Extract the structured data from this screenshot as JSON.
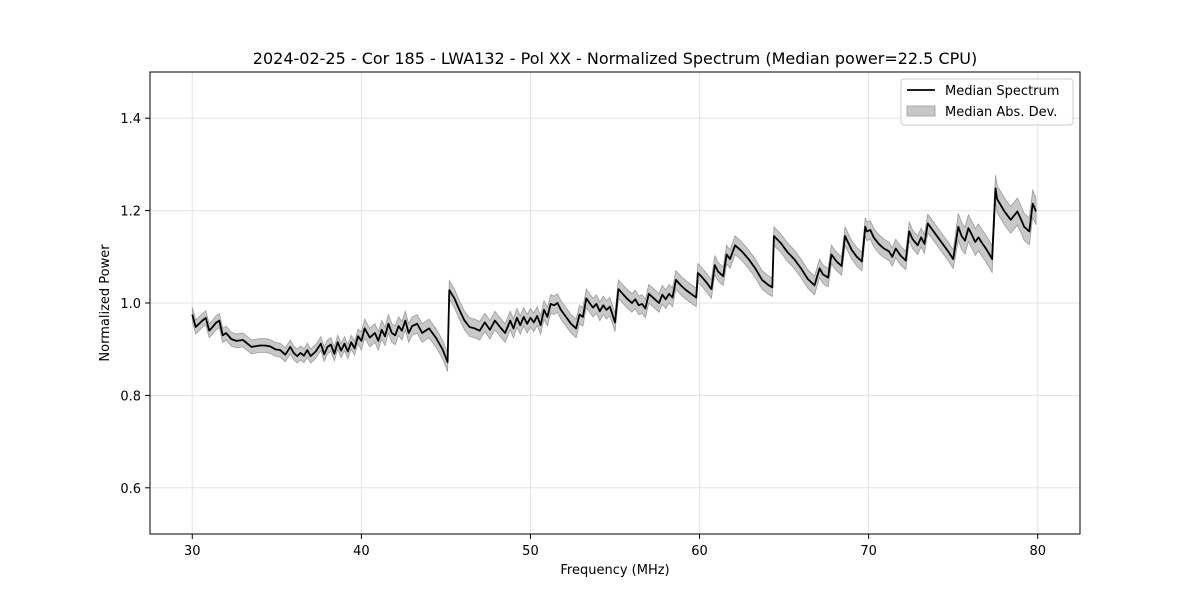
{
  "chart_data": {
    "type": "line",
    "title": "2024-02-25 - Cor 185 - LWA132 - Pol XX - Normalized Spectrum (Median power=22.5 CPU)",
    "xlabel": "Frequency (MHz)",
    "ylabel": "Normalized Power",
    "xlim": [
      27.5,
      82.5
    ],
    "ylim": [
      0.5,
      1.5
    ],
    "xticks": [
      30,
      40,
      50,
      60,
      70,
      80
    ],
    "yticks": [
      0.6,
      0.8,
      1.0,
      1.2,
      1.4
    ],
    "grid": true,
    "legend_position": "top-right",
    "colors": {
      "line": "#000000",
      "band": "#c8c8c8",
      "band_edge": "#9a9a9a",
      "grid": "#e3e3e3"
    },
    "series": [
      {
        "name": "Median Spectrum",
        "x": [
          30.0,
          30.2,
          30.4,
          30.6,
          30.8,
          31.0,
          31.2,
          31.4,
          31.6,
          31.8,
          32.0,
          32.3,
          32.6,
          33.0,
          33.5,
          34.0,
          34.3,
          34.6,
          34.9,
          35.2,
          35.5,
          35.8,
          36.0,
          36.2,
          36.4,
          36.6,
          36.8,
          37.0,
          37.3,
          37.6,
          37.8,
          38.0,
          38.2,
          38.4,
          38.6,
          38.8,
          39.0,
          39.2,
          39.4,
          39.6,
          39.8,
          40.0,
          40.2,
          40.5,
          40.8,
          41.0,
          41.2,
          41.4,
          41.6,
          41.8,
          42.0,
          42.2,
          42.4,
          42.6,
          42.8,
          43.0,
          43.3,
          43.6,
          44.0,
          44.4,
          44.8,
          45.1,
          45.2,
          45.5,
          45.8,
          46.1,
          46.4,
          46.7,
          47.0,
          47.3,
          47.6,
          47.9,
          48.2,
          48.5,
          48.8,
          49.0,
          49.2,
          49.4,
          49.6,
          49.8,
          50.0,
          50.2,
          50.4,
          50.6,
          50.8,
          51.0,
          51.2,
          51.4,
          51.6,
          51.8,
          52.1,
          52.4,
          52.7,
          52.9,
          53.1,
          53.3,
          53.5,
          53.7,
          53.9,
          54.1,
          54.3,
          54.5,
          54.7,
          55.0,
          55.2,
          55.4,
          55.7,
          56.0,
          56.2,
          56.4,
          56.6,
          56.8,
          57.0,
          57.3,
          57.6,
          57.8,
          58.0,
          58.2,
          58.4,
          58.6,
          58.9,
          59.2,
          59.5,
          59.8,
          59.9,
          60.1,
          60.4,
          60.7,
          60.9,
          61.1,
          61.4,
          61.6,
          61.8,
          62.1,
          62.5,
          62.9,
          63.3,
          63.7,
          64.1,
          64.3,
          64.4,
          64.8,
          65.2,
          65.6,
          66.0,
          66.4,
          66.8,
          67.1,
          67.3,
          67.6,
          67.8,
          68.1,
          68.4,
          68.6,
          68.8,
          69.0,
          69.3,
          69.6,
          69.8,
          69.9,
          70.1,
          70.3,
          70.6,
          70.9,
          71.2,
          71.4,
          71.6,
          71.9,
          72.2,
          72.4,
          72.6,
          72.9,
          73.1,
          73.3,
          73.5,
          73.9,
          74.3,
          74.7,
          75.0,
          75.3,
          75.5,
          75.7,
          75.9,
          76.1,
          76.3,
          76.5,
          76.7,
          76.9,
          77.1,
          77.3,
          77.5,
          77.6,
          78.0,
          78.4,
          78.8,
          79.0,
          79.2,
          79.5,
          79.7,
          79.9
        ],
        "y": [
          0.975,
          0.948,
          0.955,
          0.962,
          0.968,
          0.94,
          0.948,
          0.957,
          0.962,
          0.93,
          0.935,
          0.922,
          0.918,
          0.92,
          0.905,
          0.908,
          0.908,
          0.906,
          0.9,
          0.898,
          0.888,
          0.905,
          0.892,
          0.885,
          0.892,
          0.886,
          0.898,
          0.885,
          0.895,
          0.912,
          0.889,
          0.905,
          0.91,
          0.89,
          0.915,
          0.897,
          0.912,
          0.895,
          0.915,
          0.902,
          0.928,
          0.918,
          0.945,
          0.925,
          0.935,
          0.918,
          0.942,
          0.928,
          0.955,
          0.935,
          0.93,
          0.95,
          0.94,
          0.962,
          0.935,
          0.95,
          0.955,
          0.935,
          0.945,
          0.925,
          0.9,
          0.872,
          1.028,
          1.01,
          0.985,
          0.962,
          0.948,
          0.945,
          0.94,
          0.958,
          0.942,
          0.962,
          0.948,
          0.935,
          0.962,
          0.945,
          0.968,
          0.952,
          0.97,
          0.955,
          0.968,
          0.958,
          0.972,
          0.952,
          0.985,
          0.97,
          0.998,
          0.995,
          1.0,
          0.985,
          0.97,
          0.955,
          0.945,
          0.975,
          0.97,
          1.01,
          1.0,
          0.99,
          0.998,
          0.982,
          0.995,
          0.985,
          0.992,
          0.958,
          1.03,
          1.022,
          1.01,
          1.0,
          1.008,
          0.995,
          0.998,
          0.988,
          1.02,
          1.01,
          1.0,
          1.018,
          1.008,
          1.02,
          1.012,
          1.05,
          1.038,
          1.028,
          1.02,
          1.012,
          1.065,
          1.058,
          1.045,
          1.03,
          1.082,
          1.068,
          1.058,
          1.105,
          1.095,
          1.125,
          1.112,
          1.095,
          1.075,
          1.05,
          1.038,
          1.034,
          1.145,
          1.13,
          1.11,
          1.095,
          1.075,
          1.052,
          1.038,
          1.075,
          1.062,
          1.055,
          1.105,
          1.09,
          1.08,
          1.145,
          1.13,
          1.115,
          1.1,
          1.09,
          1.165,
          1.155,
          1.158,
          1.142,
          1.128,
          1.118,
          1.112,
          1.1,
          1.118,
          1.102,
          1.092,
          1.155,
          1.138,
          1.125,
          1.142,
          1.128,
          1.172,
          1.152,
          1.132,
          1.112,
          1.095,
          1.165,
          1.145,
          1.135,
          1.162,
          1.148,
          1.132,
          1.142,
          1.13,
          1.12,
          1.108,
          1.095,
          1.248,
          1.225,
          1.2,
          1.18,
          1.198,
          1.182,
          1.165,
          1.155,
          1.215,
          1.198
        ]
      },
      {
        "name": "Median Abs. Dev.",
        "type": "band",
        "half_width": 0.02
      }
    ]
  }
}
